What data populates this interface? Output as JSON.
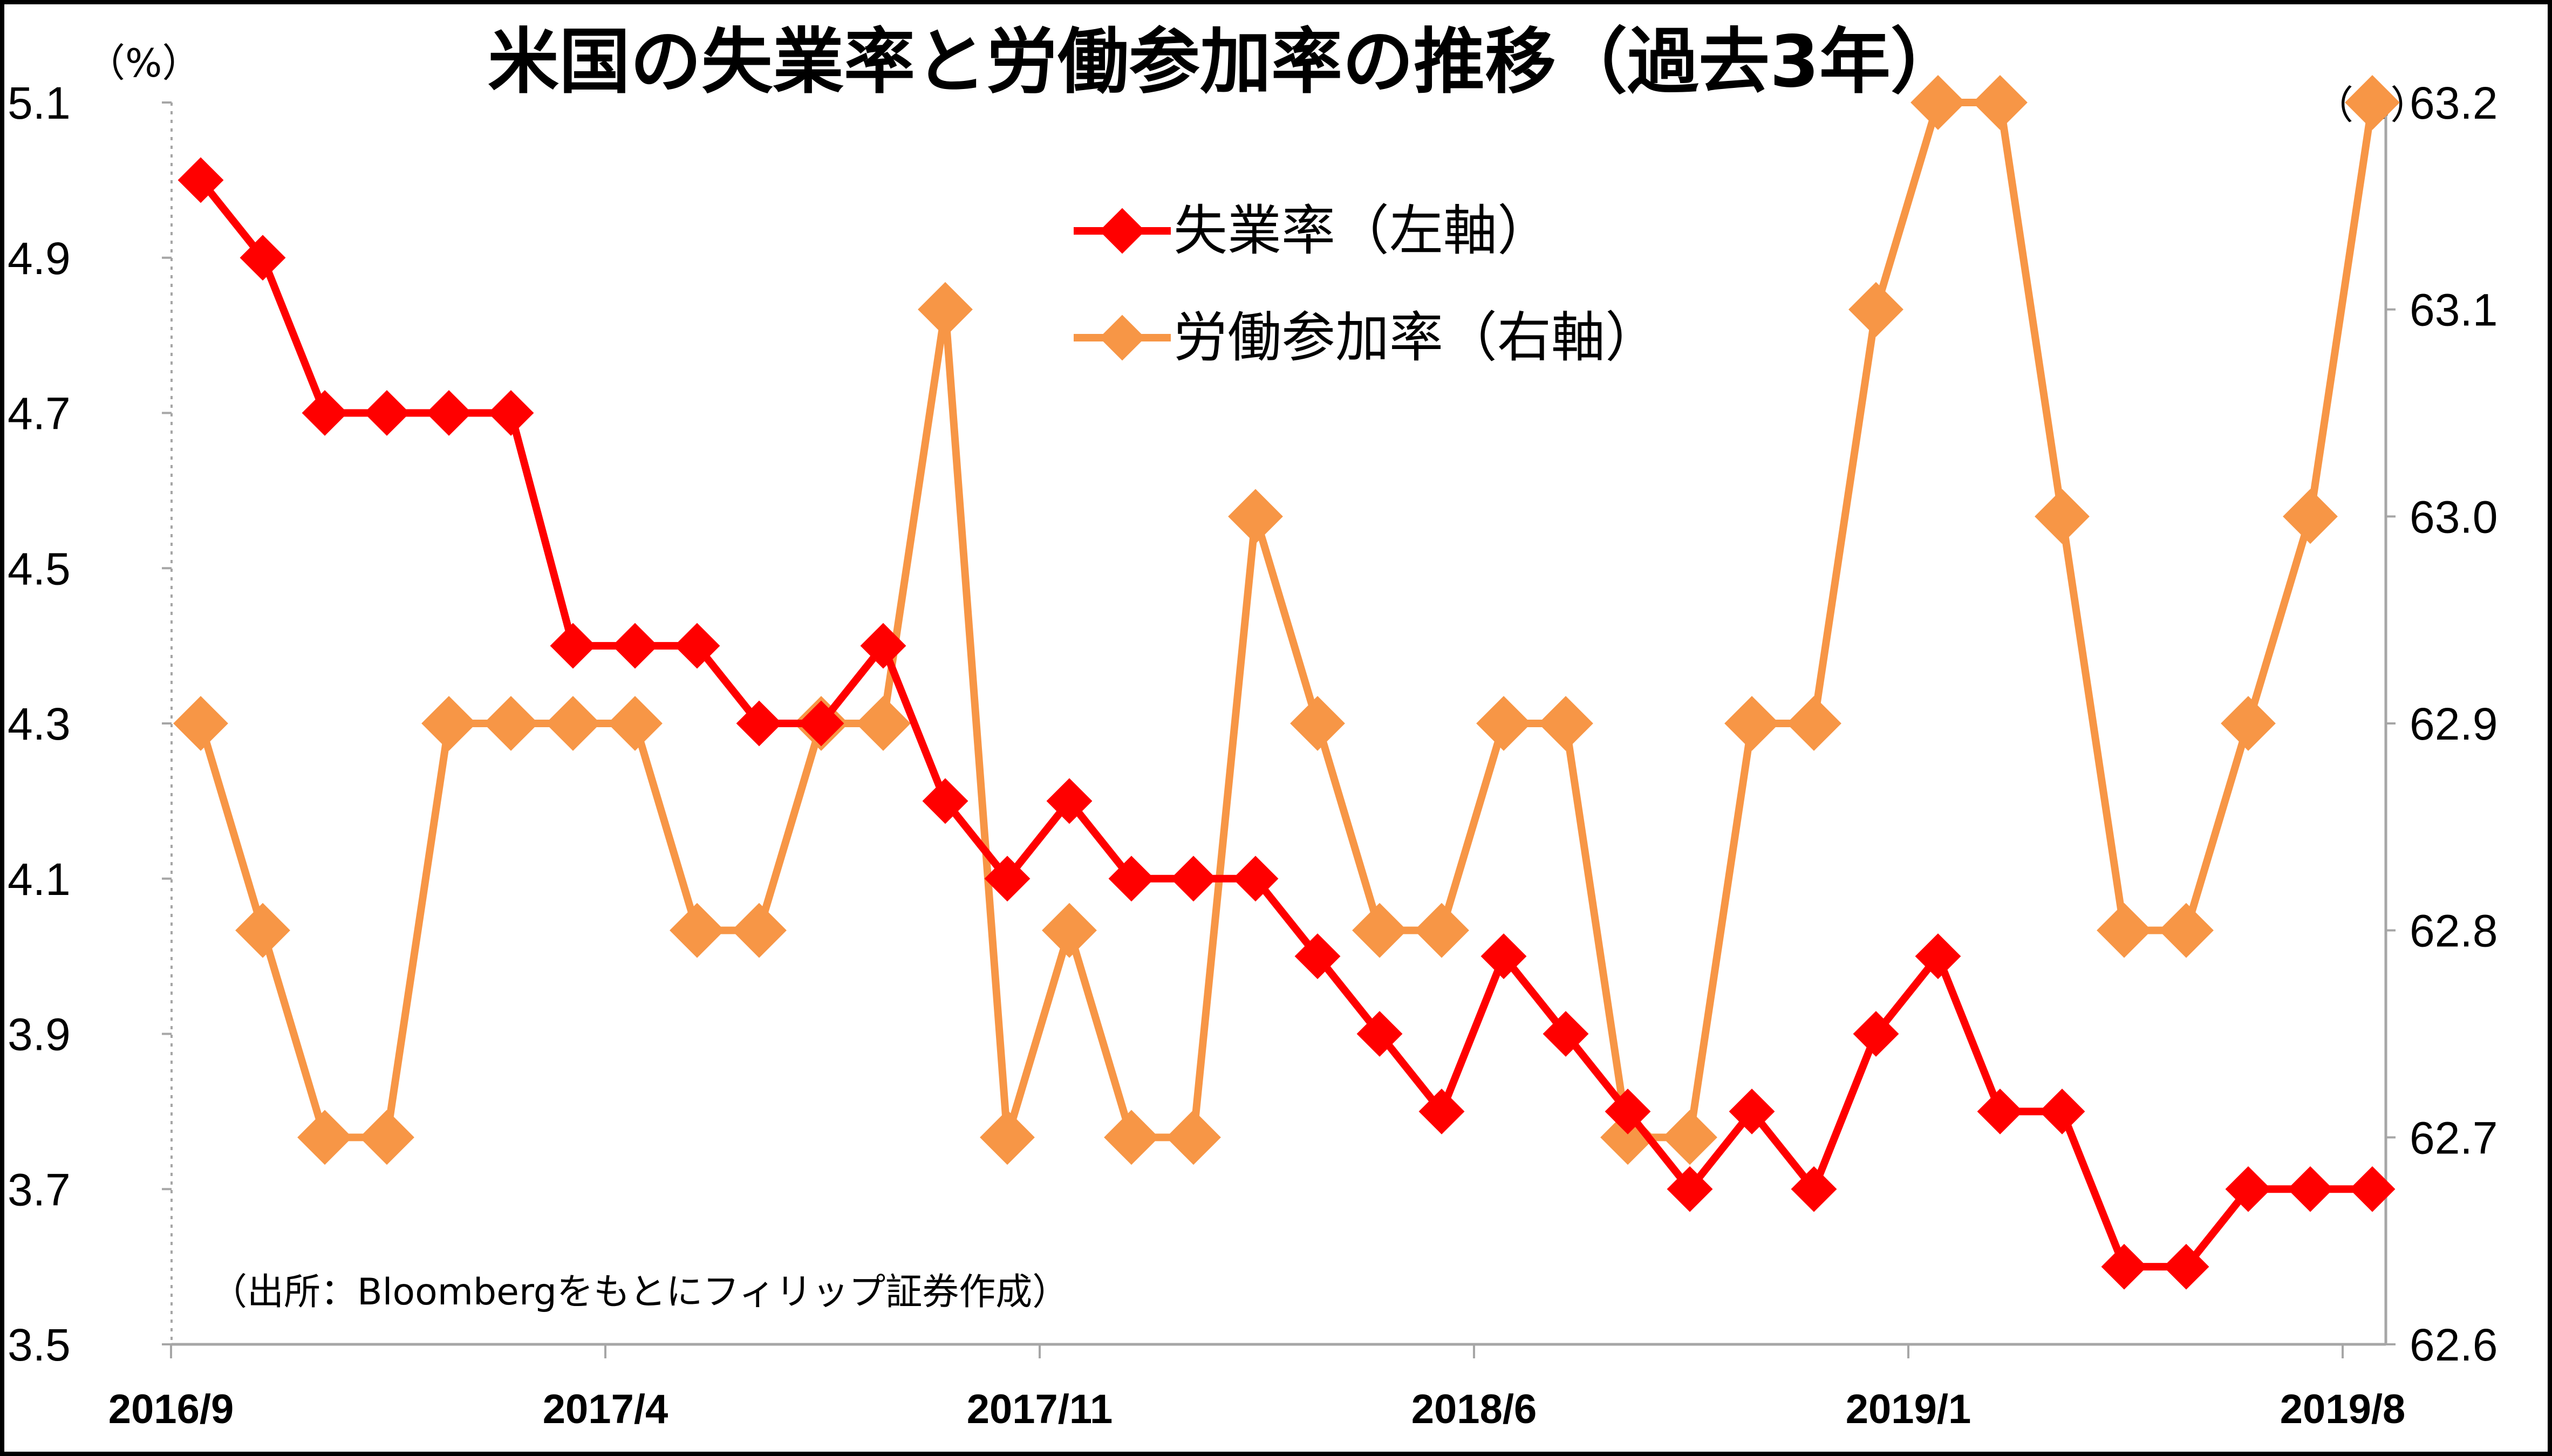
{
  "chart_data": {
    "type": "line",
    "title": "米国の失業率と労働参加率の推移（過去3年）",
    "left_unit": "（%）",
    "right_unit": "（%）",
    "source_note": "（出所：Bloombergをもとにフィリップ証券作成）",
    "x": [
      "2016/9",
      "2016/10",
      "2016/11",
      "2016/12",
      "2017/1",
      "2017/2",
      "2017/3",
      "2017/4",
      "2017/5",
      "2017/6",
      "2017/7",
      "2017/8",
      "2017/9",
      "2017/10",
      "2017/11",
      "2017/12",
      "2018/1",
      "2018/2",
      "2018/3",
      "2018/4",
      "2018/5",
      "2018/6",
      "2018/7",
      "2018/8",
      "2018/9",
      "2018/10",
      "2018/11",
      "2018/12",
      "2019/1",
      "2019/2",
      "2019/3",
      "2019/4",
      "2019/5",
      "2019/6",
      "2019/7",
      "2019/8"
    ],
    "x_tick_labels": [
      "2016/9",
      "2017/4",
      "2017/11",
      "2018/6",
      "2019/1",
      "2019/8"
    ],
    "y_left": {
      "ylim": [
        3.5,
        5.1
      ],
      "ticks": [
        "3.5",
        "3.7",
        "3.9",
        "4.1",
        "4.3",
        "4.5",
        "4.7",
        "4.9",
        "5.1"
      ]
    },
    "y_right": {
      "ylim": [
        62.6,
        63.2
      ],
      "ticks": [
        "62.6",
        "62.7",
        "62.8",
        "62.9",
        "63.0",
        "63.1",
        "63.2"
      ]
    },
    "legend_position": "top-center",
    "grid": false,
    "series": [
      {
        "name": "失業率（左軸）",
        "axis": "left",
        "color": "#ff0000",
        "values": [
          5.0,
          4.9,
          4.7,
          4.7,
          4.7,
          4.7,
          4.4,
          4.4,
          4.4,
          4.3,
          4.3,
          4.4,
          4.2,
          4.1,
          4.2,
          4.1,
          4.1,
          4.1,
          4.0,
          3.9,
          3.8,
          4.0,
          3.9,
          3.8,
          3.7,
          3.8,
          3.7,
          3.9,
          4.0,
          3.8,
          3.8,
          3.6,
          3.6,
          3.7,
          3.7,
          3.7
        ]
      },
      {
        "name": "労働参加率（右軸）",
        "axis": "right",
        "color": "#f79646",
        "values": [
          62.9,
          62.8,
          62.7,
          62.7,
          62.9,
          62.9,
          62.9,
          62.9,
          62.8,
          62.8,
          62.9,
          62.9,
          63.1,
          62.7,
          62.8,
          62.7,
          62.7,
          63.0,
          62.9,
          62.8,
          62.8,
          62.9,
          62.9,
          62.7,
          62.7,
          62.9,
          62.9,
          63.1,
          63.2,
          63.2,
          63.0,
          62.8,
          62.8,
          62.9,
          63.0,
          63.2
        ]
      }
    ]
  }
}
